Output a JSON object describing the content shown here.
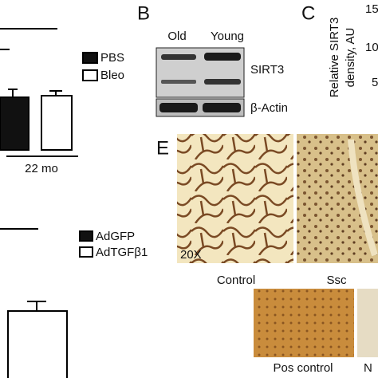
{
  "panel_a": {
    "legend_top": [
      "PBS",
      "Bleo"
    ],
    "group_label": "22 mo",
    "legend_bottom": [
      "AdGFP",
      "AdTGFβ1"
    ]
  },
  "panel_b": {
    "letter": "B",
    "columns": [
      "Old",
      "Young"
    ],
    "bands": [
      "SIRT3",
      "β-Actin"
    ]
  },
  "panel_c": {
    "letter": "C",
    "axis_label": [
      "Relative SIRT3",
      "density, AU"
    ],
    "ticks": [
      "15",
      "10",
      "5"
    ]
  },
  "panel_e": {
    "letter": "E",
    "magnification": "20X",
    "captions": [
      "Control",
      "Ssc",
      "Pos control",
      "N"
    ]
  }
}
